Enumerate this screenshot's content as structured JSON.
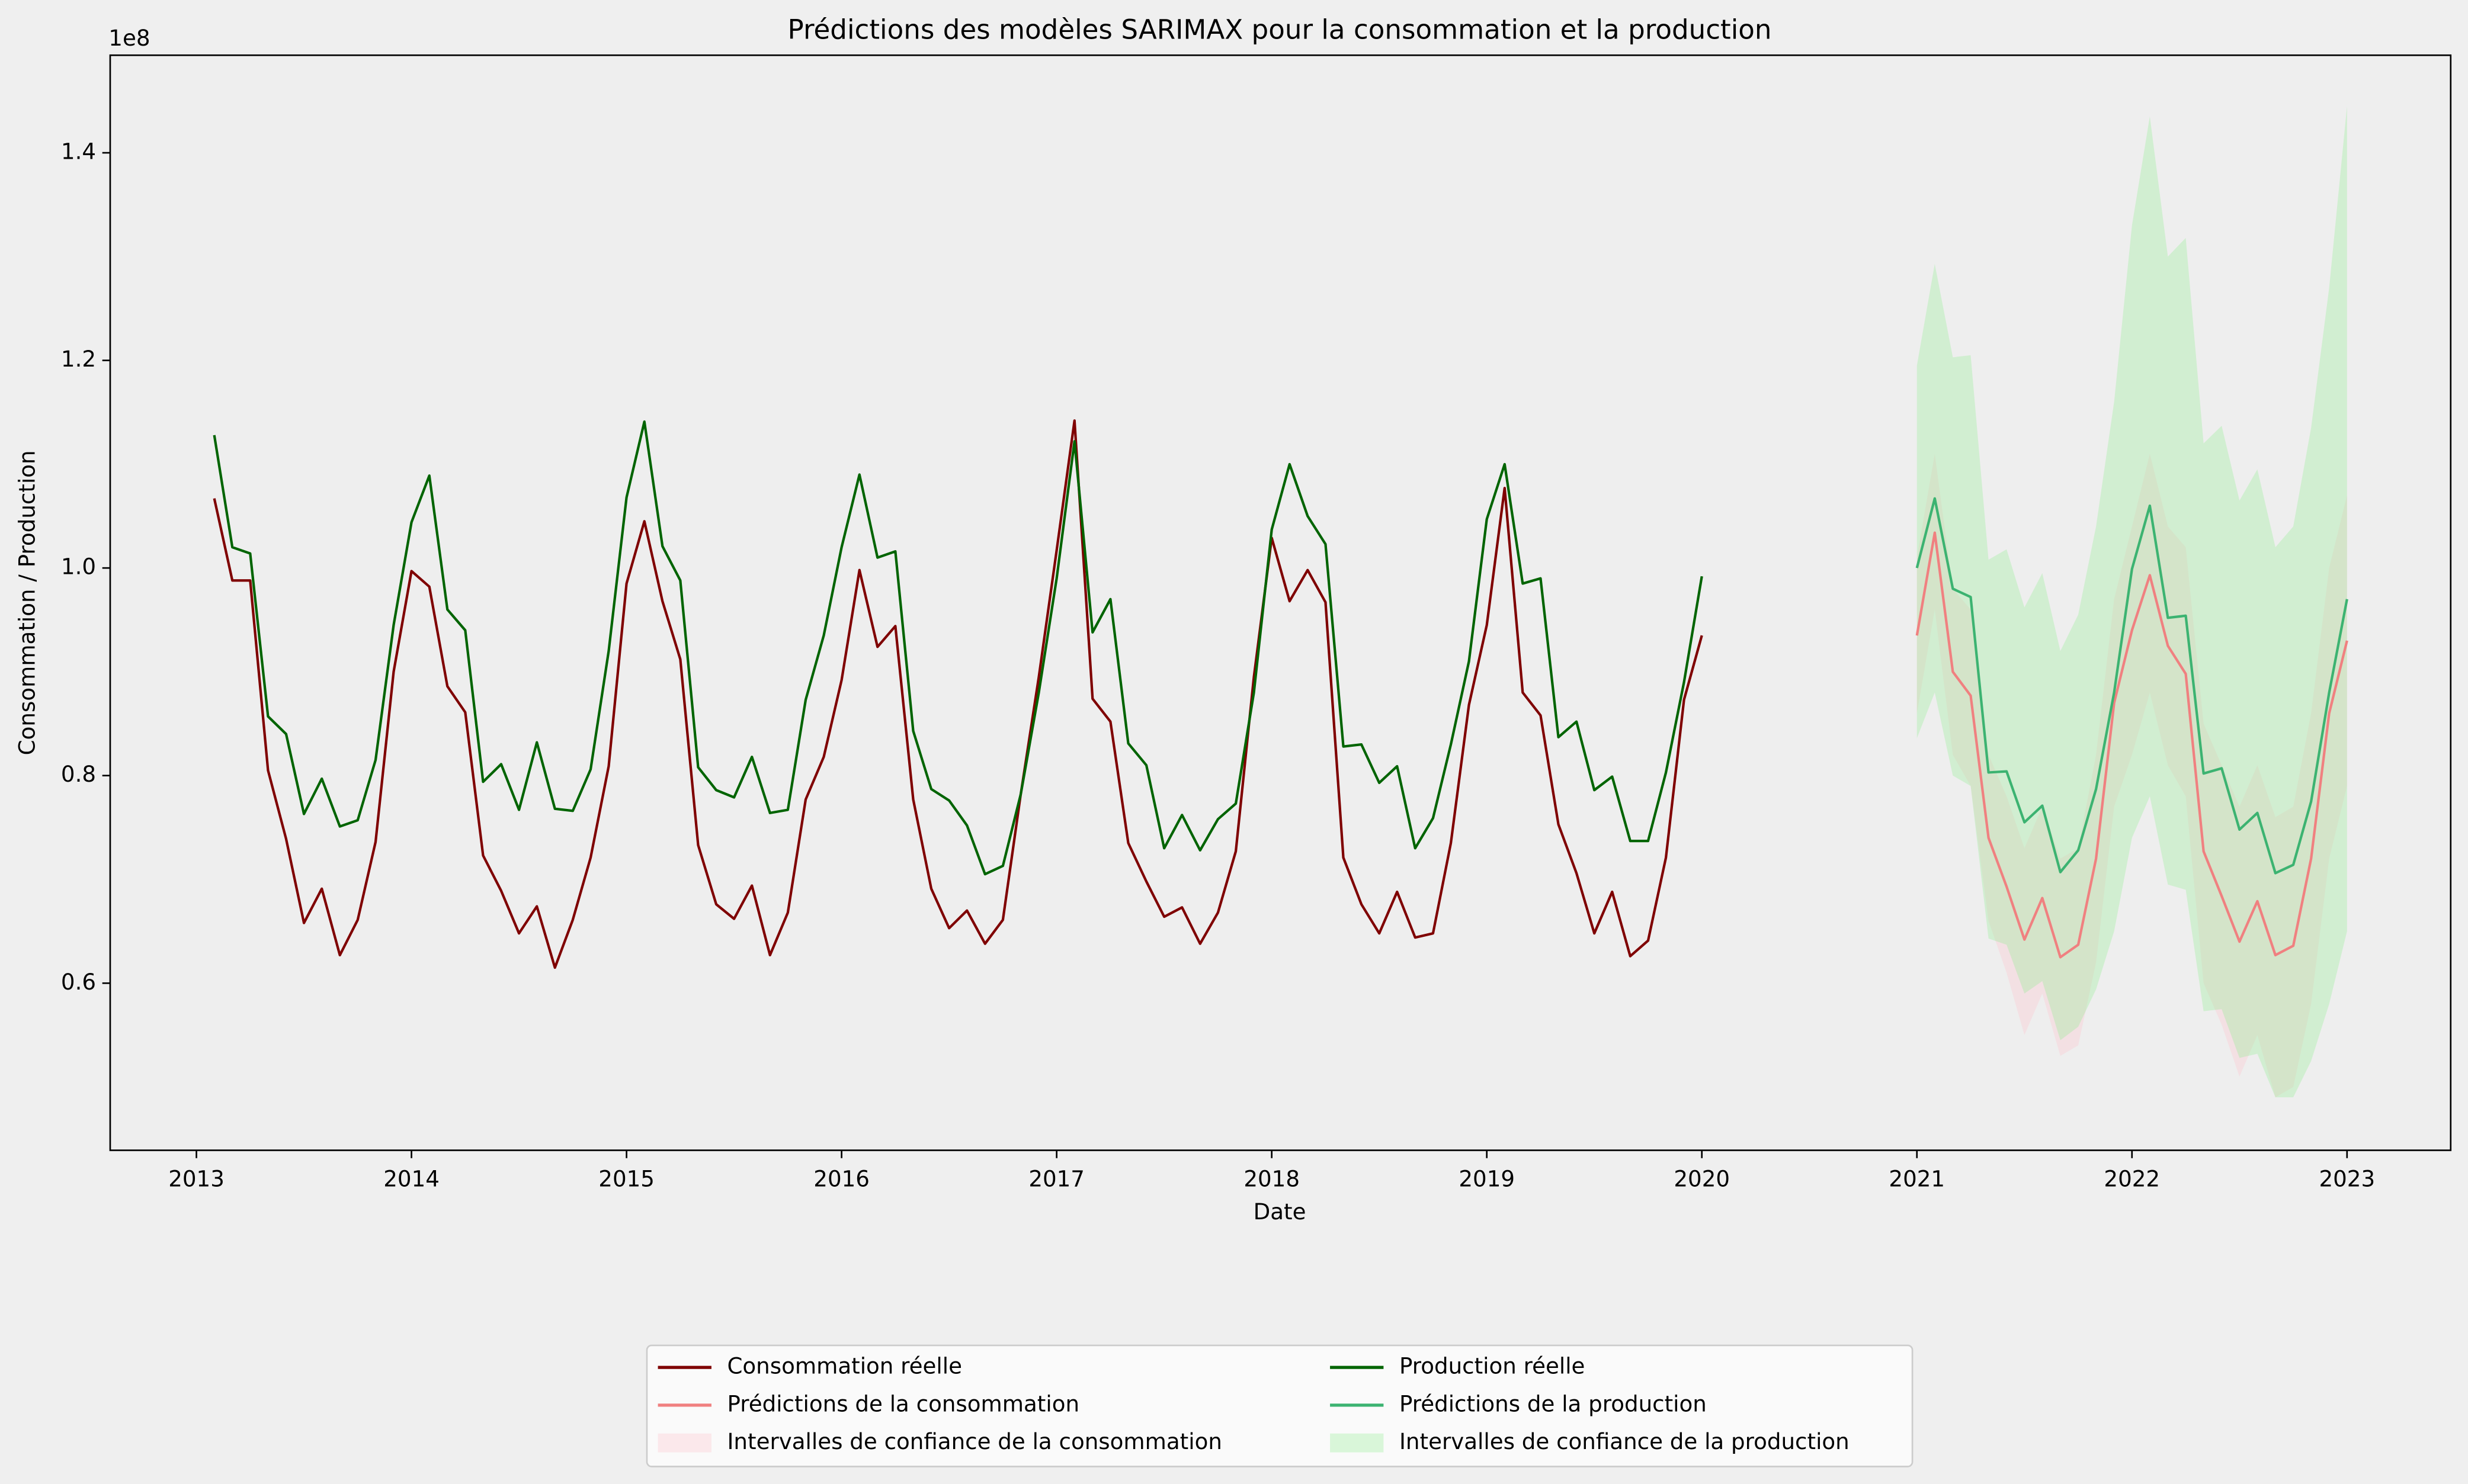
{
  "chart_data": {
    "type": "line",
    "title": "Prédictions des modèles SARIMAX pour la consommation et la production",
    "x_label": "Date",
    "y_label": "Consommation / Production",
    "y_offset_label": "1e8",
    "xlim": [
      2012.599,
      2023.482
    ],
    "xticks": [
      2013,
      2014,
      2015,
      2016,
      2017,
      2018,
      2019,
      2020,
      2021,
      2022,
      2023
    ],
    "ylim": [
      0.439,
      1.494
    ],
    "yticks": [
      0.6,
      0.8,
      {
        "value": 1,
        "label": "1.0"
      },
      1.2,
      1.4
    ],
    "grid": false,
    "legend": "lower center",
    "series": [
      {
        "name": "Consommation réelle",
        "style": "line",
        "color": "#7f0000",
        "x": [
          2013.083,
          2013.167,
          2013.25,
          2013.333,
          2013.417,
          2013.5,
          2013.583,
          2013.667,
          2013.75,
          2013.833,
          2013.917,
          2014,
          2014.083,
          2014.167,
          2014.25,
          2014.333,
          2014.417,
          2014.5,
          2014.583,
          2014.667,
          2014.75,
          2014.833,
          2014.917,
          2015,
          2015.083,
          2015.167,
          2015.25,
          2015.333,
          2015.417,
          2015.5,
          2015.583,
          2015.667,
          2015.75,
          2015.833,
          2015.917,
          2016,
          2016.083,
          2016.167,
          2016.25,
          2016.333,
          2016.417,
          2016.5,
          2016.583,
          2016.667,
          2016.75,
          2016.833,
          2016.917,
          2017,
          2017.083,
          2017.167,
          2017.25,
          2017.333,
          2017.417,
          2017.5,
          2017.583,
          2017.667,
          2017.75,
          2017.833,
          2017.917,
          2018,
          2018.083,
          2018.167,
          2018.25,
          2018.333,
          2018.417,
          2018.5,
          2018.583,
          2018.667,
          2018.75,
          2018.833,
          2018.917,
          2019,
          2019.083,
          2019.167,
          2019.25,
          2019.333,
          2019.417,
          2019.5,
          2019.583,
          2019.667,
          2019.75,
          2019.833,
          2019.917,
          2020
        ],
        "values": [
          1.067,
          0.988,
          0.988,
          0.805,
          0.739,
          0.658,
          0.691,
          0.627,
          0.661,
          0.736,
          0.9,
          0.997,
          0.982,
          0.886,
          0.861,
          0.723,
          0.689,
          0.648,
          0.674,
          0.615,
          0.661,
          0.721,
          0.809,
          0.985,
          1.045,
          0.968,
          0.912,
          0.733,
          0.676,
          0.662,
          0.694,
          0.627,
          0.668,
          0.777,
          0.818,
          0.892,
          0.998,
          0.924,
          0.944,
          0.777,
          0.691,
          0.653,
          0.67,
          0.638,
          0.661,
          0.782,
          0.895,
          1.017,
          1.142,
          0.874,
          0.852,
          0.735,
          0.698,
          0.664,
          0.673,
          0.638,
          0.668,
          0.727,
          0.895,
          1.029,
          0.968,
          0.998,
          0.967,
          0.721,
          0.676,
          0.648,
          0.688,
          0.644,
          0.648,
          0.735,
          0.868,
          0.945,
          1.077,
          0.88,
          0.858,
          0.753,
          0.706,
          0.648,
          0.688,
          0.626,
          0.641,
          0.721,
          0.873,
          0.935
        ]
      },
      {
        "name": "Prédictions de la consommation",
        "style": "line",
        "color": "#f08080",
        "x": [
          2021,
          2021.083,
          2021.167,
          2021.25,
          2021.333,
          2021.417,
          2021.5,
          2021.583,
          2021.667,
          2021.75,
          2021.833,
          2021.917,
          2022,
          2022.083,
          2022.167,
          2022.25,
          2022.333,
          2022.417,
          2022.5,
          2022.583,
          2022.667,
          2022.75,
          2022.833,
          2022.917,
          2023
        ],
        "values": [
          0.935,
          1.034,
          0.9,
          0.877,
          0.74,
          0.693,
          0.642,
          0.682,
          0.625,
          0.637,
          0.72,
          0.87,
          0.94,
          0.993,
          0.925,
          0.898,
          0.727,
          0.684,
          0.64,
          0.679,
          0.627,
          0.636,
          0.72,
          0.86,
          0.93
        ]
      },
      {
        "name": "Intervalles de confiance de la consommation",
        "style": "band",
        "color": "#ffc0cb",
        "x": [
          2021,
          2021.083,
          2021.167,
          2021.25,
          2021.333,
          2021.417,
          2021.5,
          2021.583,
          2021.667,
          2021.75,
          2021.833,
          2021.917,
          2022,
          2022.083,
          2022.167,
          2022.25,
          2022.333,
          2022.417,
          2022.5,
          2022.583,
          2022.667,
          2022.75,
          2022.833,
          2022.917,
          2023
        ],
        "upper": [
          1.01,
          1.11,
          0.98,
          0.96,
          0.82,
          0.78,
          0.73,
          0.77,
          0.72,
          0.73,
          0.82,
          0.97,
          1.04,
          1.11,
          1.04,
          1.02,
          0.85,
          0.81,
          0.77,
          0.81,
          0.76,
          0.77,
          0.86,
          1.0,
          1.07
        ],
        "lower": [
          0.86,
          0.96,
          0.82,
          0.79,
          0.66,
          0.61,
          0.55,
          0.59,
          0.53,
          0.54,
          0.62,
          0.77,
          0.82,
          0.88,
          0.81,
          0.78,
          0.6,
          0.56,
          0.51,
          0.55,
          0.49,
          0.5,
          0.58,
          0.72,
          0.79
        ]
      },
      {
        "name": "Production réelle",
        "style": "line",
        "color": "#006400",
        "x": [
          2013.083,
          2013.167,
          2013.25,
          2013.333,
          2013.417,
          2013.5,
          2013.583,
          2013.667,
          2013.75,
          2013.833,
          2013.917,
          2014,
          2014.083,
          2014.167,
          2014.25,
          2014.333,
          2014.417,
          2014.5,
          2014.583,
          2014.667,
          2014.75,
          2014.833,
          2014.917,
          2015,
          2015.083,
          2015.167,
          2015.25,
          2015.333,
          2015.417,
          2015.5,
          2015.583,
          2015.667,
          2015.75,
          2015.833,
          2015.917,
          2016,
          2016.083,
          2016.167,
          2016.25,
          2016.333,
          2016.417,
          2016.5,
          2016.583,
          2016.667,
          2016.75,
          2016.833,
          2016.917,
          2017,
          2017.083,
          2017.167,
          2017.25,
          2017.333,
          2017.417,
          2017.5,
          2017.583,
          2017.667,
          2017.75,
          2017.833,
          2017.917,
          2018,
          2018.083,
          2018.167,
          2018.25,
          2018.333,
          2018.417,
          2018.5,
          2018.583,
          2018.667,
          2018.75,
          2018.833,
          2018.917,
          2019,
          2019.083,
          2019.167,
          2019.25,
          2019.333,
          2019.417,
          2019.5,
          2019.583,
          2019.667,
          2019.75,
          2019.833,
          2019.917,
          2020
        ],
        "values": [
          1.128,
          1.02,
          1.014,
          0.857,
          0.84,
          0.763,
          0.797,
          0.751,
          0.757,
          0.815,
          0.945,
          1.044,
          1.089,
          0.96,
          0.94,
          0.794,
          0.811,
          0.767,
          0.832,
          0.768,
          0.766,
          0.806,
          0.92,
          1.068,
          1.141,
          1.021,
          0.988,
          0.808,
          0.786,
          0.779,
          0.818,
          0.764,
          0.767,
          0.873,
          0.935,
          1.02,
          1.09,
          1.01,
          1.016,
          0.843,
          0.787,
          0.776,
          0.752,
          0.705,
          0.713,
          0.782,
          0.88,
          0.99,
          1.122,
          0.938,
          0.97,
          0.831,
          0.81,
          0.73,
          0.762,
          0.728,
          0.758,
          0.773,
          0.88,
          1.037,
          1.1,
          1.05,
          1.023,
          0.828,
          0.83,
          0.793,
          0.809,
          0.73,
          0.759,
          0.83,
          0.91,
          1.047,
          1.1,
          0.985,
          0.99,
          0.837,
          0.852,
          0.786,
          0.799,
          0.737,
          0.737,
          0.803,
          0.89,
          0.992
        ]
      },
      {
        "name": "Prédictions de la production",
        "style": "line",
        "color": "#3cb371",
        "x": [
          2021,
          2021.083,
          2021.167,
          2021.25,
          2021.333,
          2021.417,
          2021.5,
          2021.583,
          2021.667,
          2021.75,
          2021.833,
          2021.917,
          2022,
          2022.083,
          2022.167,
          2022.25,
          2022.333,
          2022.417,
          2022.5,
          2022.583,
          2022.667,
          2022.75,
          2022.833,
          2022.917,
          2023
        ],
        "values": [
          1.0,
          1.067,
          0.98,
          0.972,
          0.803,
          0.804,
          0.755,
          0.771,
          0.707,
          0.728,
          0.787,
          0.88,
          0.999,
          1.06,
          0.952,
          0.954,
          0.802,
          0.807,
          0.748,
          0.764,
          0.706,
          0.714,
          0.775,
          0.88,
          0.97
        ]
      },
      {
        "name": "Intervalles de confiance de la production",
        "style": "band",
        "color": "#90ee90",
        "x": [
          2021,
          2021.083,
          2021.167,
          2021.25,
          2021.333,
          2021.417,
          2021.5,
          2021.583,
          2021.667,
          2021.75,
          2021.833,
          2021.917,
          2022,
          2022.083,
          2022.167,
          2022.25,
          2022.333,
          2022.417,
          2022.5,
          2022.583,
          2022.667,
          2022.75,
          2022.833,
          2022.917,
          2023
        ],
        "upper": [
          1.195,
          1.293,
          1.203,
          1.205,
          1.008,
          1.018,
          0.962,
          0.995,
          0.92,
          0.955,
          1.04,
          1.16,
          1.33,
          1.435,
          1.3,
          1.318,
          1.12,
          1.137,
          1.065,
          1.095,
          1.02,
          1.04,
          1.135,
          1.27,
          1.445
        ],
        "lower": [
          0.836,
          0.88,
          0.8,
          0.79,
          0.643,
          0.637,
          0.59,
          0.602,
          0.545,
          0.558,
          0.594,
          0.65,
          0.74,
          0.78,
          0.695,
          0.69,
          0.573,
          0.575,
          0.528,
          0.532,
          0.49,
          0.49,
          0.525,
          0.58,
          0.65
        ]
      }
    ]
  }
}
